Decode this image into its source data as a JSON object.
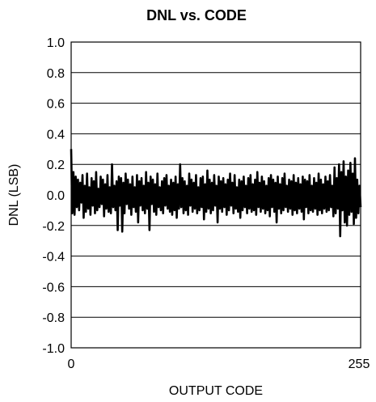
{
  "chart_data": {
    "type": "line",
    "title": "DNL vs. CODE",
    "xlabel": "OUTPUT CODE",
    "ylabel": "DNL (LSB)",
    "xlim": [
      0,
      255
    ],
    "ylim": [
      -1.0,
      1.0
    ],
    "x_ticks": [
      {
        "value": 0,
        "label": "0"
      },
      {
        "value": 255,
        "label": "255"
      }
    ],
    "y_ticks": [
      {
        "value": 1.0,
        "label": "1.0"
      },
      {
        "value": 0.8,
        "label": "0.8"
      },
      {
        "value": 0.6,
        "label": "0.6"
      },
      {
        "value": 0.4,
        "label": "0.4"
      },
      {
        "value": 0.2,
        "label": "0.2"
      },
      {
        "value": 0.0,
        "label": "0.0"
      },
      {
        "value": -0.2,
        "label": "-0.2"
      },
      {
        "value": -0.4,
        "label": "-0.4"
      },
      {
        "value": -0.6,
        "label": "-0.6"
      },
      {
        "value": -0.8,
        "label": "-0.8"
      },
      {
        "value": -1.0,
        "label": "-1.0"
      }
    ],
    "grid": "horizontal",
    "legend": "none",
    "line_color": "#000000",
    "series": [
      {
        "x_start": 0,
        "x_step": 1,
        "values": [
          0.3,
          -0.12,
          0.15,
          -0.13,
          0.12,
          -0.08,
          0.1,
          -0.1,
          0.08,
          -0.05,
          0.13,
          -0.15,
          0.06,
          -0.11,
          0.14,
          -0.09,
          0.05,
          -0.13,
          0.11,
          -0.07,
          0.09,
          -0.12,
          0.15,
          -0.1,
          0.04,
          -0.08,
          0.12,
          -0.06,
          0.1,
          -0.14,
          0.07,
          -0.09,
          0.13,
          -0.11,
          0.05,
          -0.12,
          0.2,
          -0.08,
          0.06,
          -0.1,
          0.09,
          -0.23,
          0.12,
          -0.07,
          0.11,
          -0.24,
          0.08,
          -0.12,
          0.14,
          -0.06,
          0.1,
          -0.09,
          0.07,
          -0.13,
          0.12,
          -0.08,
          0.05,
          -0.11,
          0.13,
          -0.18,
          0.09,
          -0.07,
          0.11,
          -0.1,
          0.06,
          -0.12,
          0.15,
          -0.09,
          0.08,
          -0.23,
          0.12,
          -0.06,
          0.1,
          -0.11,
          0.07,
          -0.13,
          0.14,
          -0.08,
          0.05,
          -0.1,
          0.09,
          -0.12,
          0.11,
          -0.07,
          0.13,
          -0.09,
          0.06,
          -0.11,
          0.1,
          -0.13,
          0.08,
          -0.1,
          0.12,
          -0.15,
          0.07,
          -0.09,
          0.2,
          -0.08,
          0.11,
          -0.12,
          0.09,
          -0.1,
          0.06,
          -0.13,
          0.14,
          -0.07,
          0.1,
          -0.11,
          0.08,
          -0.09,
          0.13,
          -0.12,
          0.05,
          -0.1,
          0.11,
          -0.08,
          0.12,
          -0.16,
          0.07,
          -0.11,
          0.16,
          -0.09,
          0.1,
          -0.12,
          0.08,
          -0.1,
          0.13,
          -0.07,
          0.06,
          -0.18,
          0.12,
          -0.09,
          0.09,
          -0.11,
          0.11,
          -0.08,
          0.07,
          -0.13,
          0.1,
          -0.1,
          0.14,
          -0.07,
          0.08,
          -0.12,
          0.13,
          -0.09,
          0.05,
          -0.11,
          0.1,
          -0.15,
          0.09,
          -0.1,
          0.12,
          -0.08,
          0.06,
          -0.12,
          0.11,
          -0.09,
          0.13,
          -0.11,
          0.07,
          -0.1,
          0.1,
          -0.13,
          0.15,
          -0.08,
          0.08,
          -0.11,
          0.12,
          -0.09,
          0.09,
          -0.12,
          0.06,
          -0.1,
          0.11,
          -0.14,
          0.13,
          -0.08,
          0.1,
          -0.11,
          0.08,
          -0.18,
          0.12,
          -0.09,
          0.07,
          -0.12,
          0.11,
          -0.1,
          0.14,
          -0.08,
          0.06,
          -0.11,
          0.1,
          -0.09,
          0.09,
          -0.13,
          0.13,
          -0.1,
          0.08,
          -0.12,
          0.11,
          -0.09,
          0.07,
          -0.11,
          0.12,
          -0.16,
          0.1,
          -0.08,
          0.09,
          -0.12,
          0.13,
          -0.1,
          0.06,
          -0.11,
          0.11,
          -0.09,
          0.08,
          -0.13,
          0.14,
          -0.1,
          0.1,
          -0.12,
          0.07,
          -0.09,
          0.12,
          -0.11,
          0.09,
          -0.1,
          0.13,
          -0.08,
          0.06,
          -0.14,
          0.18,
          -0.12,
          0.11,
          -0.09,
          0.2,
          -0.27,
          0.15,
          -0.1,
          0.22,
          -0.18,
          0.12,
          -0.2,
          0.16,
          -0.13,
          0.21,
          -0.11,
          0.14,
          -0.19,
          0.24,
          -0.15,
          0.1,
          -0.12,
          0.06,
          -0.08
        ]
      }
    ]
  }
}
